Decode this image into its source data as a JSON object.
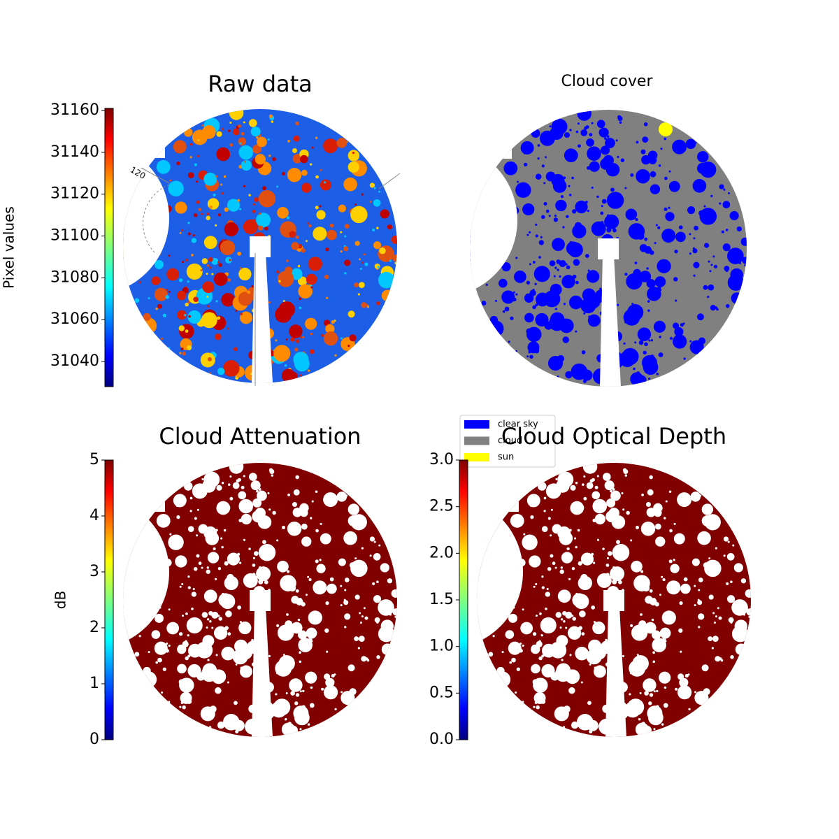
{
  "chart_data": [
    {
      "type": "image",
      "title": "Raw data",
      "ylabel": "Pixel values",
      "ylim": [
        31028,
        31161
      ],
      "yticks": [
        31040,
        31060,
        31080,
        31100,
        31120,
        31140,
        31160
      ],
      "annotations": [
        "120"
      ]
    },
    {
      "type": "image",
      "title": "Cloud cover",
      "legend": {
        "entries": [
          {
            "name": "clear sky",
            "color": "#0000ff"
          },
          {
            "name": "cloud",
            "color": "#808080"
          },
          {
            "name": "sun",
            "color": "#ffff00"
          }
        ]
      }
    },
    {
      "type": "image",
      "title": "Cloud Attenuation",
      "ylabel": "dB",
      "ylim": [
        0,
        5
      ],
      "yticks": [
        0,
        1,
        2,
        3,
        4,
        5
      ]
    },
    {
      "type": "image",
      "title": "Cloud Optical Depth",
      "ylim": [
        0,
        3
      ],
      "yticks": [
        {
          "value": 0,
          "label": "0.0"
        },
        {
          "value": 0.5,
          "label": "0.5"
        },
        {
          "value": 1,
          "label": "1.0"
        },
        {
          "value": 1.5,
          "label": "1.5"
        },
        {
          "value": 2,
          "label": "2.0"
        },
        {
          "value": 2.5,
          "label": "2.5"
        },
        {
          "value": 3,
          "label": "3.0"
        }
      ]
    }
  ]
}
